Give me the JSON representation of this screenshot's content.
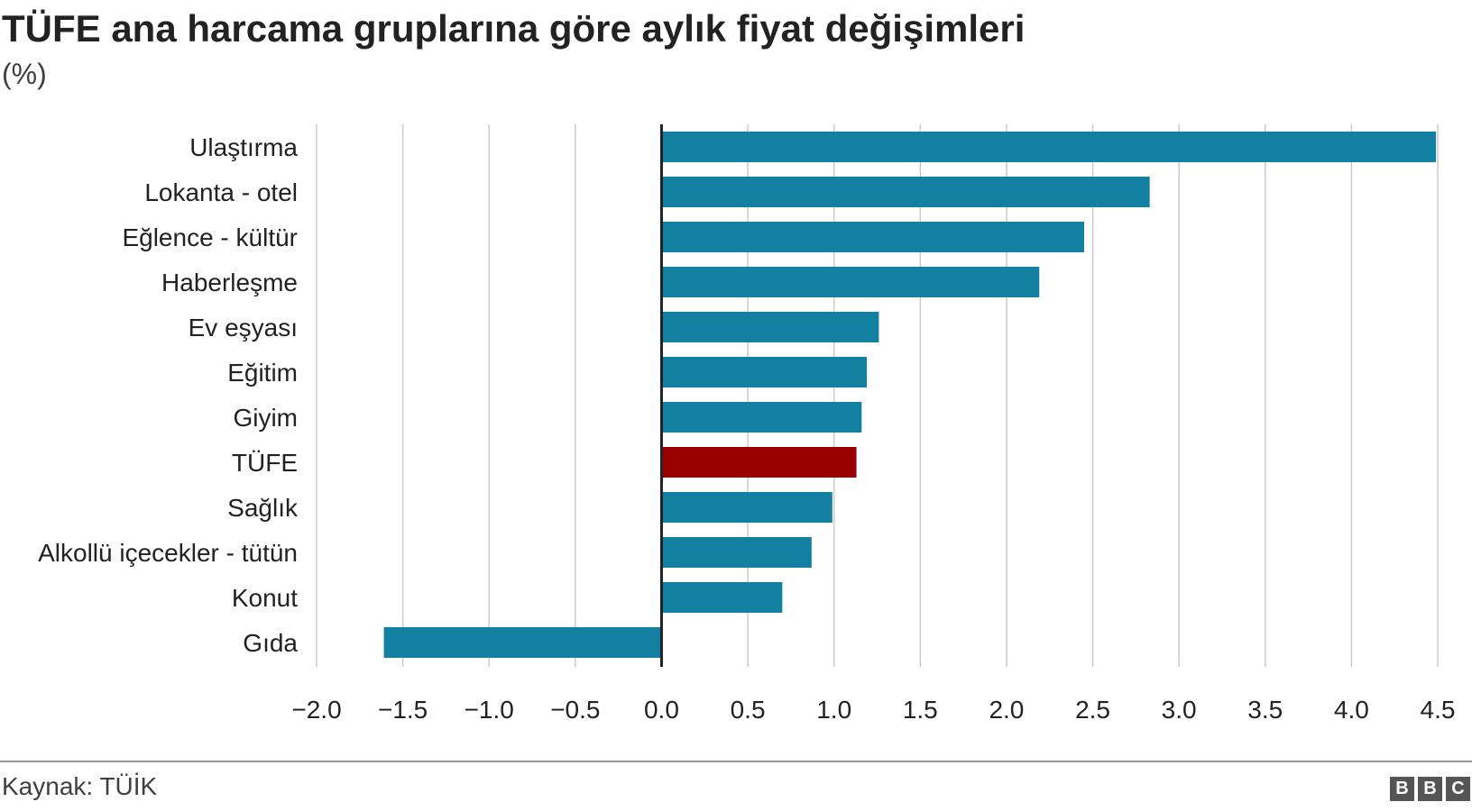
{
  "chart_data": {
    "type": "bar",
    "orientation": "horizontal",
    "title": "TÜFE ana harcama gruplarına göre aylık fiyat değişimleri",
    "subtitle": "(%)",
    "categories": [
      "Ulaştırma",
      "Lokanta - otel",
      "Eğlence - kültür",
      "Haberleşme",
      "Ev eşyası",
      "Eğitim",
      "Giyim",
      "TÜFE",
      "Sağlık",
      "Alkollü içecekler - tütün",
      "Konut",
      "Gıda"
    ],
    "values": [
      4.49,
      2.83,
      2.45,
      2.19,
      1.26,
      1.19,
      1.16,
      1.13,
      0.99,
      0.87,
      0.7,
      -1.61
    ],
    "highlight_category": "TÜFE",
    "colors": {
      "bar": "#1380a1",
      "highlight": "#990000",
      "grid": "#cbcbcb",
      "zero_line": "#222222"
    },
    "xlim": [
      -2.0,
      4.5
    ],
    "x_ticks": [
      -2.0,
      -1.5,
      -1.0,
      -0.5,
      0.0,
      0.5,
      1.0,
      1.5,
      2.0,
      2.5,
      3.0,
      3.5,
      4.0,
      4.5
    ],
    "x_tick_labels": [
      "−2.0",
      "−1.5",
      "−1.0",
      "−0.5",
      "0.0",
      "0.5",
      "1.0",
      "1.5",
      "2.0",
      "2.5",
      "3.0",
      "3.5",
      "4.0",
      "4.5"
    ],
    "grid": true,
    "xlabel": "",
    "ylabel": ""
  },
  "footer": {
    "source": "Kaynak: TÜİK",
    "logo_letters": [
      "B",
      "B",
      "C"
    ]
  }
}
